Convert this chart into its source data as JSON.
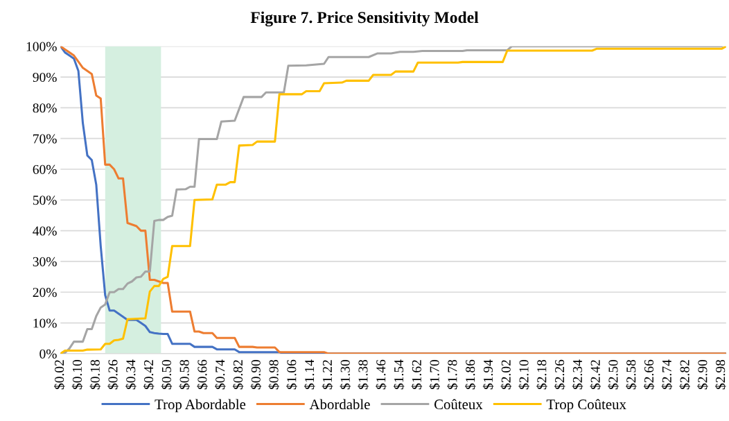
{
  "chart_data": {
    "type": "line",
    "title": "Figure 7. Price Sensitivity Model",
    "series": [
      {
        "name": "Trop Abordable",
        "color": "#4472c4",
        "x": [
          0.02,
          0.04,
          0.06,
          0.08,
          0.1,
          0.12,
          0.14,
          0.16,
          0.18,
          0.2,
          0.22,
          0.24,
          0.26,
          0.28,
          0.3,
          0.32,
          0.34,
          0.36,
          0.38,
          0.4,
          0.42,
          0.44,
          0.46,
          0.48,
          0.5,
          0.52,
          0.6,
          0.62,
          0.7,
          0.72,
          0.8,
          0.82,
          1.0,
          1.02,
          3.0
        ],
        "values": [
          100,
          98,
          97,
          96,
          92,
          75,
          64.5,
          63,
          55,
          35,
          19,
          14,
          14,
          13,
          12,
          11,
          11,
          11,
          10,
          9,
          7,
          6.7,
          6.5,
          6.4,
          6.4,
          3.2,
          3.2,
          2.2,
          2.2,
          1.4,
          1.4,
          0.5,
          0.5,
          0,
          0
        ]
      },
      {
        "name": "Abordable",
        "color": "#ed7d31",
        "x": [
          0.02,
          0.04,
          0.06,
          0.08,
          0.1,
          0.12,
          0.14,
          0.16,
          0.18,
          0.2,
          0.22,
          0.24,
          0.26,
          0.28,
          0.3,
          0.32,
          0.34,
          0.36,
          0.38,
          0.4,
          0.42,
          0.44,
          0.46,
          0.48,
          0.5,
          0.52,
          0.6,
          0.62,
          0.64,
          0.66,
          0.7,
          0.72,
          0.8,
          0.82,
          0.88,
          0.9,
          0.98,
          1.0,
          1.2,
          1.22,
          3.0
        ],
        "values": [
          100,
          99,
          98,
          97,
          95,
          93,
          92,
          91,
          84,
          83,
          61.5,
          61.5,
          60,
          57,
          57,
          42.5,
          42,
          41.5,
          40,
          40,
          24,
          24,
          23.5,
          23,
          23,
          13.7,
          13.7,
          7.2,
          7.2,
          6.7,
          6.7,
          5.1,
          5.1,
          2.2,
          2.2,
          2,
          2,
          0.5,
          0.5,
          0,
          0
        ]
      },
      {
        "name": "Coûteux",
        "color": "#a5a5a5",
        "x": [
          0.02,
          0.04,
          0.06,
          0.08,
          0.12,
          0.14,
          0.16,
          0.18,
          0.2,
          0.22,
          0.24,
          0.26,
          0.28,
          0.3,
          0.32,
          0.34,
          0.36,
          0.38,
          0.4,
          0.42,
          0.44,
          0.46,
          0.48,
          0.5,
          0.52,
          0.54,
          0.58,
          0.6,
          0.62,
          0.64,
          0.72,
          0.74,
          0.8,
          0.84,
          0.92,
          0.94,
          1.02,
          1.04,
          1.12,
          1.2,
          1.22,
          1.4,
          1.44,
          1.5,
          1.54,
          1.6,
          1.64,
          1.82,
          1.84,
          2.02,
          2.04,
          2.98
        ],
        "values": [
          0,
          0.3,
          1.7,
          3.9,
          3.9,
          8,
          8,
          12.2,
          15,
          16,
          20,
          20,
          21,
          21,
          22.8,
          23.5,
          24.8,
          25,
          26.7,
          26.7,
          43.2,
          43.5,
          43.5,
          44.5,
          44.9,
          53.4,
          53.5,
          54.3,
          54.3,
          69.8,
          69.8,
          75.5,
          75.8,
          83.5,
          83.5,
          85,
          85,
          93.7,
          93.8,
          94.3,
          96.5,
          96.5,
          97.7,
          97.7,
          98.2,
          98.2,
          98.5,
          98.5,
          98.7,
          98.7,
          100,
          100
        ]
      },
      {
        "name": "Trop Coûteux",
        "color": "#ffc000",
        "x": [
          0.02,
          0.04,
          0.12,
          0.14,
          0.2,
          0.22,
          0.24,
          0.26,
          0.28,
          0.3,
          0.32,
          0.4,
          0.42,
          0.44,
          0.46,
          0.48,
          0.5,
          0.52,
          0.6,
          0.62,
          0.7,
          0.72,
          0.76,
          0.78,
          0.8,
          0.82,
          0.88,
          0.9,
          0.98,
          1.0,
          1.1,
          1.12,
          1.18,
          1.2,
          1.28,
          1.3,
          1.4,
          1.42,
          1.5,
          1.52,
          1.6,
          1.62,
          1.8,
          1.82,
          2.0,
          2.02,
          2.4,
          2.42,
          2.98,
          3.0
        ],
        "values": [
          0,
          1,
          1,
          1.3,
          1.4,
          3.2,
          3.2,
          4.3,
          4.5,
          4.9,
          11.2,
          11.5,
          20.2,
          22,
          22,
          24.3,
          25,
          35,
          35,
          50,
          50.2,
          55,
          55,
          55.8,
          55.8,
          67.7,
          67.9,
          69,
          69,
          84.4,
          84.4,
          85.4,
          85.4,
          88,
          88.2,
          88.8,
          88.8,
          90.7,
          90.7,
          91.8,
          91.8,
          94.7,
          94.7,
          94.9,
          94.9,
          98.6,
          98.6,
          99.2,
          99.2,
          100
        ]
      }
    ],
    "bands": [
      {
        "axis": "x",
        "from": 0.22,
        "to": 0.47,
        "color": "#d5efe0"
      }
    ],
    "xlim": [
      0.02,
      3.0
    ],
    "ylim": [
      0,
      100
    ],
    "xticks": [
      {
        "value": 0.02,
        "label": "$0.02"
      },
      {
        "value": 0.1,
        "label": "$0.10"
      },
      {
        "value": 0.18,
        "label": "$0.18"
      },
      {
        "value": 0.26,
        "label": "$0.26"
      },
      {
        "value": 0.34,
        "label": "$0.34"
      },
      {
        "value": 0.42,
        "label": "$0.42"
      },
      {
        "value": 0.5,
        "label": "$0.50"
      },
      {
        "value": 0.58,
        "label": "$0.58"
      },
      {
        "value": 0.66,
        "label": "$0.66"
      },
      {
        "value": 0.74,
        "label": "$0.74"
      },
      {
        "value": 0.82,
        "label": "$0.82"
      },
      {
        "value": 0.9,
        "label": "$0.90"
      },
      {
        "value": 0.98,
        "label": "$0.98"
      },
      {
        "value": 1.06,
        "label": "$1.06"
      },
      {
        "value": 1.14,
        "label": "$1.14"
      },
      {
        "value": 1.22,
        "label": "$1.22"
      },
      {
        "value": 1.3,
        "label": "$1.30"
      },
      {
        "value": 1.38,
        "label": "$1.38"
      },
      {
        "value": 1.46,
        "label": "$1.46"
      },
      {
        "value": 1.54,
        "label": "$1.54"
      },
      {
        "value": 1.62,
        "label": "$1.62"
      },
      {
        "value": 1.7,
        "label": "$1.70"
      },
      {
        "value": 1.78,
        "label": "$1.78"
      },
      {
        "value": 1.86,
        "label": "$1.86"
      },
      {
        "value": 1.94,
        "label": "$1.94"
      },
      {
        "value": 2.02,
        "label": "$2.02"
      },
      {
        "value": 2.1,
        "label": "$2.10"
      },
      {
        "value": 2.18,
        "label": "$2.18"
      },
      {
        "value": 2.26,
        "label": "$2.26"
      },
      {
        "value": 2.34,
        "label": "$2.34"
      },
      {
        "value": 2.42,
        "label": "$2.42"
      },
      {
        "value": 2.5,
        "label": "$2.50"
      },
      {
        "value": 2.58,
        "label": "$2.58"
      },
      {
        "value": 2.66,
        "label": "$2.66"
      },
      {
        "value": 2.74,
        "label": "$2.74"
      },
      {
        "value": 2.82,
        "label": "$2.82"
      },
      {
        "value": 2.9,
        "label": "$2.90"
      },
      {
        "value": 2.98,
        "label": "$2.98"
      }
    ],
    "yticks": [
      {
        "value": 0,
        "label": "0%"
      },
      {
        "value": 10,
        "label": "10%"
      },
      {
        "value": 20,
        "label": "20%"
      },
      {
        "value": 30,
        "label": "30%"
      },
      {
        "value": 40,
        "label": "40%"
      },
      {
        "value": 50,
        "label": "50%"
      },
      {
        "value": 60,
        "label": "60%"
      },
      {
        "value": 70,
        "label": "70%"
      },
      {
        "value": 80,
        "label": "80%"
      },
      {
        "value": 90,
        "label": "90%"
      },
      {
        "value": 100,
        "label": "100%"
      }
    ],
    "grid": "y",
    "legend": "bottom",
    "marker": "none",
    "line_style": "solid"
  }
}
